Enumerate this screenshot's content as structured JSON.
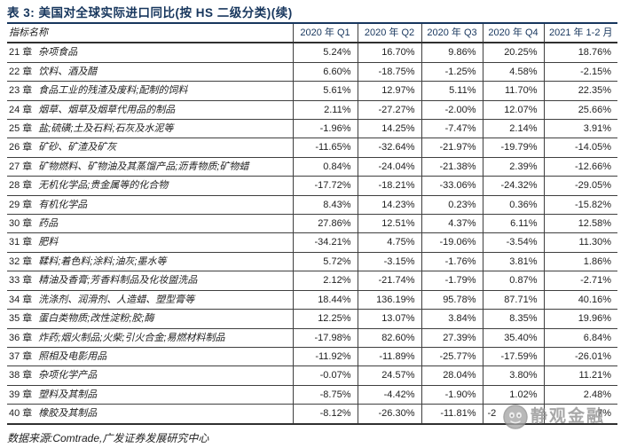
{
  "page": {
    "title": "表 3:  美国对全球实际进口同比(按 HS 二级分类)(续)",
    "source_note": "数据来源:Comtrade,广发证券发展研究中心",
    "watermark": {
      "text": "静观金融",
      "logo": "wechat-account-face-logo"
    }
  },
  "colors": {
    "title_navy": "#17365d",
    "body_text": "#222222",
    "border": "#3f3f3f",
    "watermark_gray": "#8f8f8f"
  },
  "table": {
    "columns": [
      "指标名称",
      "2020 年 Q1",
      "2020 年 Q2",
      "2020 年 Q3",
      "2020 年 Q4",
      "2021 年 1-2 月"
    ],
    "rows": [
      {
        "chapter": "21 章",
        "name": "杂项食品",
        "values": [
          "5.24%",
          "16.70%",
          "9.86%",
          "20.25%",
          "18.76%"
        ]
      },
      {
        "chapter": "22 章",
        "name": "饮料、酒及醋",
        "values": [
          "6.60%",
          "-18.75%",
          "-1.25%",
          "4.58%",
          "-2.15%"
        ]
      },
      {
        "chapter": "23 章",
        "name": "食品工业的残渣及废料;配制的饲料",
        "values": [
          "5.61%",
          "12.97%",
          "5.11%",
          "11.70%",
          "22.35%"
        ]
      },
      {
        "chapter": "24 章",
        "name": "烟草、烟草及烟草代用品的制品",
        "values": [
          "2.11%",
          "-27.27%",
          "-2.00%",
          "12.07%",
          "25.66%"
        ]
      },
      {
        "chapter": "25 章",
        "name": "盐;硫磺;土及石料;石灰及水泥等",
        "values": [
          "-1.96%",
          "14.25%",
          "-7.47%",
          "2.14%",
          "3.91%"
        ]
      },
      {
        "chapter": "26 章",
        "name": "矿砂、矿渣及矿灰",
        "values": [
          "-11.65%",
          "-32.64%",
          "-21.97%",
          "-19.79%",
          "-14.05%"
        ]
      },
      {
        "chapter": "27 章",
        "name": "矿物燃料、矿物油及其蒸馏产品;沥青物质;矿物蜡",
        "values": [
          "0.84%",
          "-24.04%",
          "-21.38%",
          "2.39%",
          "-12.66%"
        ]
      },
      {
        "chapter": "28 章",
        "name": "无机化学品;贵金属等的化合物",
        "values": [
          "-17.72%",
          "-18.21%",
          "-33.06%",
          "-24.32%",
          "-29.05%"
        ]
      },
      {
        "chapter": "29 章",
        "name": "有机化学品",
        "values": [
          "8.43%",
          "14.23%",
          "0.23%",
          "0.36%",
          "-15.82%"
        ]
      },
      {
        "chapter": "30 章",
        "name": "药品",
        "values": [
          "27.86%",
          "12.51%",
          "4.37%",
          "6.11%",
          "12.58%"
        ]
      },
      {
        "chapter": "31 章",
        "name": "肥料",
        "values": [
          "-34.21%",
          "4.75%",
          "-19.06%",
          "-3.54%",
          "11.30%"
        ]
      },
      {
        "chapter": "32 章",
        "name": "鞣料;着色料;涂料;油灰;墨水等",
        "values": [
          "5.72%",
          "-3.15%",
          "-1.76%",
          "3.81%",
          "1.86%"
        ]
      },
      {
        "chapter": "33 章",
        "name": "精油及香膏;芳香料制品及化妆盥洗品",
        "values": [
          "2.12%",
          "-21.74%",
          "-1.79%",
          "0.87%",
          "-2.71%"
        ]
      },
      {
        "chapter": "34 章",
        "name": "洗涤剂、润滑剂、人造蜡、塑型膏等",
        "values": [
          "18.44%",
          "136.19%",
          "95.78%",
          "87.71%",
          "40.16%"
        ]
      },
      {
        "chapter": "35 章",
        "name": "蛋白类物质;改性淀粉;胶;酶",
        "values": [
          "12.25%",
          "13.07%",
          "3.84%",
          "8.35%",
          "19.96%"
        ]
      },
      {
        "chapter": "36 章",
        "name": "炸药;烟火制品;火柴;引火合金;易燃材料制品",
        "values": [
          "-17.98%",
          "82.60%",
          "27.39%",
          "35.40%",
          "6.84%"
        ]
      },
      {
        "chapter": "37 章",
        "name": "照相及电影用品",
        "values": [
          "-11.92%",
          "-11.89%",
          "-25.77%",
          "-17.59%",
          "-26.01%"
        ]
      },
      {
        "chapter": "38 章",
        "name": "杂项化学产品",
        "values": [
          "-0.07%",
          "24.57%",
          "28.04%",
          "3.80%",
          "11.21%"
        ]
      },
      {
        "chapter": "39 章",
        "name": "塑料及其制品",
        "values": [
          "-8.75%",
          "-4.42%",
          "-1.90%",
          "1.02%",
          "2.48%"
        ]
      },
      {
        "chapter": "40 章",
        "name": "橡胶及其制品",
        "values": [
          "-8.12%",
          "-26.30%",
          "-11.81%",
          "-2",
          "7%"
        ],
        "obscured_by_watermark": true
      }
    ]
  }
}
